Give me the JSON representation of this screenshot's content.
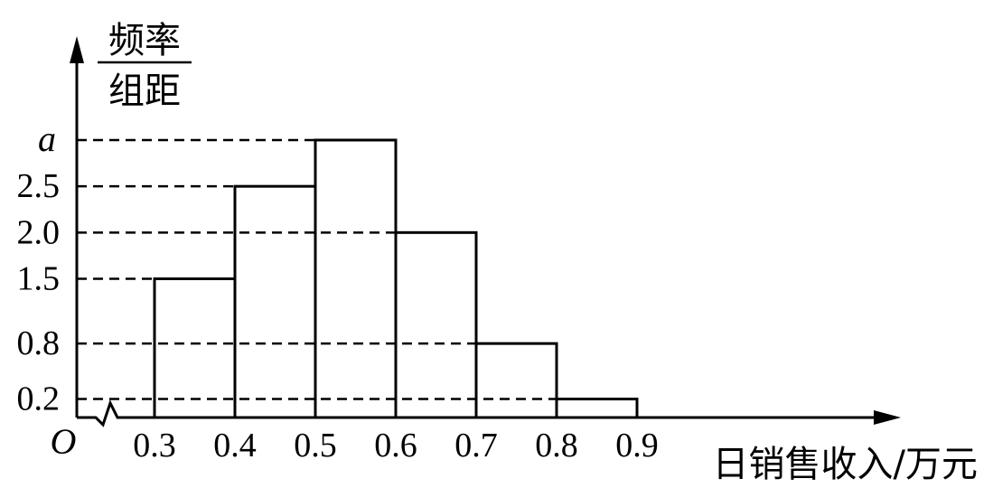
{
  "chart_data": {
    "type": "bar",
    "bins": [
      {
        "from": 0.3,
        "to": 0.4,
        "value": 1.5
      },
      {
        "from": 0.4,
        "to": 0.5,
        "value": 2.5
      },
      {
        "from": 0.5,
        "to": 0.6,
        "value": 3.0,
        "value_label": "a"
      },
      {
        "from": 0.6,
        "to": 0.7,
        "value": 2.0
      },
      {
        "from": 0.7,
        "to": 0.8,
        "value": 0.8
      },
      {
        "from": 0.8,
        "to": 0.9,
        "value": 0.2
      }
    ],
    "x_ticks": [
      "0.3",
      "0.4",
      "0.5",
      "0.6",
      "0.7",
      "0.8",
      "0.9"
    ],
    "y_ticks": [
      {
        "value": 0.2,
        "label": "0.2"
      },
      {
        "value": 0.8,
        "label": "0.8"
      },
      {
        "value": 1.5,
        "label": "1.5"
      },
      {
        "value": 2.0,
        "label": "2.0"
      },
      {
        "value": 2.5,
        "label": "2.5"
      },
      {
        "value": 3.0,
        "label": "a"
      }
    ],
    "ylabel_numerator": "频率",
    "ylabel_denominator": "组距",
    "xlabel": "日销售收入/万元",
    "origin_label": "O",
    "xlim": [
      0.3,
      0.9
    ],
    "ylim": [
      0,
      3.0
    ],
    "axis_break": true,
    "grid": false
  }
}
